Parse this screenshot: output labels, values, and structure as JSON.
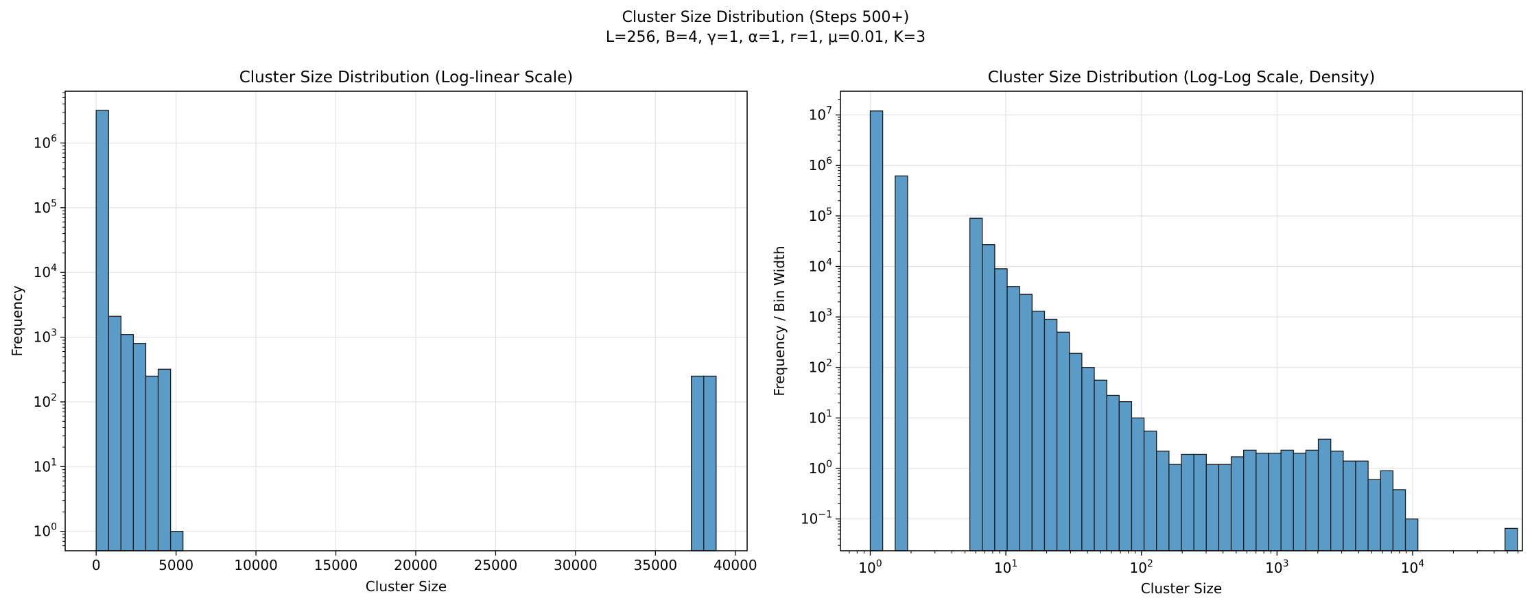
{
  "figure": {
    "suptitle_line1": "Cluster Size Distribution (Steps 500+)",
    "suptitle_line2": "L=256, B=4, γ=1, α=1, r=1, μ=0.01, K=3"
  },
  "colors": {
    "bar_fill": "#5b9bc8",
    "bar_edge": "#1a1a1a",
    "grid": "#e3e3e3",
    "axes": "#000000"
  },
  "chart_data": [
    {
      "type": "bar",
      "title": "Cluster Size Distribution (Log-linear Scale)",
      "xlabel": "Cluster Size",
      "ylabel": "Frequency",
      "xscale": "linear",
      "yscale": "log",
      "xlim": [
        -1940,
        40740
      ],
      "ylim_log10": [
        -0.3,
        6.8
      ],
      "grid": true,
      "x_ticks": [
        0,
        5000,
        10000,
        15000,
        20000,
        25000,
        30000,
        35000,
        40000
      ],
      "x_tick_labels": [
        "0",
        "5000",
        "10000",
        "15000",
        "20000",
        "25000",
        "30000",
        "35000",
        "40000"
      ],
      "y_ticks_log10": [
        0,
        1,
        2,
        3,
        4,
        5,
        6
      ],
      "bin_edges": [
        0,
        776,
        1552,
        2328,
        3104,
        3880,
        4656,
        5432,
        37248,
        38024,
        38800
      ],
      "bins": [
        {
          "start": 0,
          "end": 776,
          "value": 3200000
        },
        {
          "start": 776,
          "end": 1552,
          "value": 2100
        },
        {
          "start": 1552,
          "end": 2328,
          "value": 1100
        },
        {
          "start": 2328,
          "end": 3104,
          "value": 800
        },
        {
          "start": 3104,
          "end": 3880,
          "value": 250
        },
        {
          "start": 3880,
          "end": 4656,
          "value": 320
        },
        {
          "start": 4656,
          "end": 5432,
          "value": 1
        },
        {
          "start": 37248,
          "end": 38024,
          "value": 250
        },
        {
          "start": 38024,
          "end": 38800,
          "value": 250
        }
      ]
    },
    {
      "type": "bar",
      "title": "Cluster Size Distribution (Log-Log Scale, Density)",
      "xlabel": "Cluster Size",
      "ylabel": "Frequency / Bin Width",
      "xscale": "log",
      "yscale": "log",
      "xlim_log10": [
        -0.22,
        4.81
      ],
      "ylim_log10": [
        -1.63,
        7.47
      ],
      "grid": true,
      "x_ticks_log10": [
        0,
        1,
        2,
        3,
        4
      ],
      "y_ticks_log10": [
        -1,
        0,
        1,
        2,
        3,
        4,
        5,
        6,
        7
      ],
      "bin_width_log10": 0.0918,
      "first_bin_start_log10": 0,
      "values": [
        12000000,
        0,
        620000,
        0,
        0,
        0,
        0,
        0,
        90000,
        27000,
        9000,
        4000,
        2800,
        1300,
        900,
        500,
        190,
        100,
        56,
        28,
        21,
        10,
        5.5,
        2.2,
        1.2,
        1.9,
        1.9,
        1.2,
        1.2,
        1.7,
        2.3,
        2.0,
        2.0,
        2.3,
        2.0,
        2.3,
        3.8,
        2.2,
        1.4,
        1.4,
        0.6,
        0.9,
        0.38,
        0.1,
        0,
        0,
        0,
        0,
        0,
        0,
        0,
        0.065
      ]
    }
  ]
}
